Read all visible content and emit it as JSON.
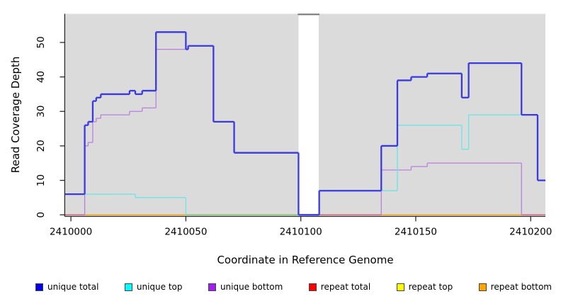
{
  "chart_data": {
    "type": "line",
    "step": "after",
    "xlabel": "Coordinate in Reference Genome",
    "ylabel": "Read Coverage Depth",
    "xlim": [
      2409997.5,
      2410206.4
    ],
    "ylim": [
      0,
      58.2
    ],
    "x_ticks": [
      2410000,
      2410050,
      2410100,
      2410150,
      2410200
    ],
    "y_ticks": [
      0,
      10,
      20,
      30,
      40,
      50
    ],
    "panel_background": "#DBDBDB",
    "coverage_gap": {
      "from": 2410099,
      "to": 2410107.8,
      "fill": "#FFFFFF",
      "top_edge_color": "#7A7A7A"
    },
    "series": [
      {
        "name": "repeat total",
        "layer": "back",
        "line_color": "#CF6287",
        "width": 1.3,
        "skip_zero": true,
        "x": [
          2409997.5
        ],
        "y": [
          0
        ]
      },
      {
        "name": "repeat top",
        "layer": "back",
        "line_color": "#E8E860",
        "width": 1.3,
        "skip_zero": true,
        "x": [
          2409997.5
        ],
        "y": [
          0
        ]
      },
      {
        "name": "repeat bottom",
        "layer": "back",
        "line_color": "#FFA500",
        "width": 1.3,
        "skip_zero": false,
        "x": [
          2409997.5
        ],
        "y": [
          0
        ]
      },
      {
        "name": "unique bottom",
        "layer": "front",
        "line_color": "#B97FDF",
        "width": 1.3,
        "skip_zero": true,
        "x": [
          2409997.5,
          2410006,
          2410007.5,
          2410009.5,
          2410011,
          2410013,
          2410025.5,
          2410031,
          2410037,
          2410051,
          2410062,
          2410071,
          2410099,
          2410135,
          2410148,
          2410155,
          2410196
        ],
        "y": [
          0,
          20,
          21,
          27,
          28,
          29,
          30,
          31,
          48,
          49,
          27,
          18,
          0,
          13,
          14,
          15,
          0
        ]
      },
      {
        "name": "unique top",
        "layer": "front",
        "line_color": "#69E5E5",
        "width": 1.3,
        "skip_zero": true,
        "x": [
          2409997.5,
          2410028,
          2410050,
          2410108,
          2410142,
          2410170,
          2410173,
          2410203
        ],
        "y": [
          6,
          5,
          0,
          7,
          26,
          19,
          29,
          10
        ]
      },
      {
        "name": "unique total",
        "layer": "front",
        "line_color": "#3A3ADF",
        "width": 2.3,
        "skip_zero": false,
        "x": [
          2409997.5,
          2410006,
          2410007.5,
          2410009.5,
          2410011,
          2410013,
          2410025.5,
          2410028,
          2410031,
          2410037,
          2410050,
          2410051,
          2410062,
          2410071,
          2410099,
          2410108,
          2410135,
          2410142,
          2410148,
          2410155,
          2410170,
          2410173,
          2410196,
          2410203
        ],
        "y": [
          6,
          26,
          27,
          33,
          34,
          35,
          36,
          35,
          36,
          53,
          48,
          49,
          27,
          18,
          0,
          7,
          20,
          39,
          40,
          41,
          34,
          44,
          29,
          10
        ]
      }
    ],
    "zero_line_blend_segments": [
      {
        "from": 2410050,
        "to": 2410099,
        "color": "#7CC87C"
      },
      {
        "from": 2409997.5,
        "to": 2410006,
        "color": "#CF6287"
      },
      {
        "from": 2410108,
        "to": 2410135,
        "color": "#CF6287"
      },
      {
        "from": 2410196,
        "to": 2410206.4,
        "color": "#CF6287"
      }
    ],
    "legend": [
      {
        "label": "unique total",
        "color": "#0000EE"
      },
      {
        "label": "unique top",
        "color": "#00FFFF"
      },
      {
        "label": "unique bottom",
        "color": "#A020F0"
      },
      {
        "label": "repeat total",
        "color": "#FF0000"
      },
      {
        "label": "repeat top",
        "color": "#FFFF00"
      },
      {
        "label": "repeat bottom",
        "color": "#FFA500"
      }
    ]
  }
}
